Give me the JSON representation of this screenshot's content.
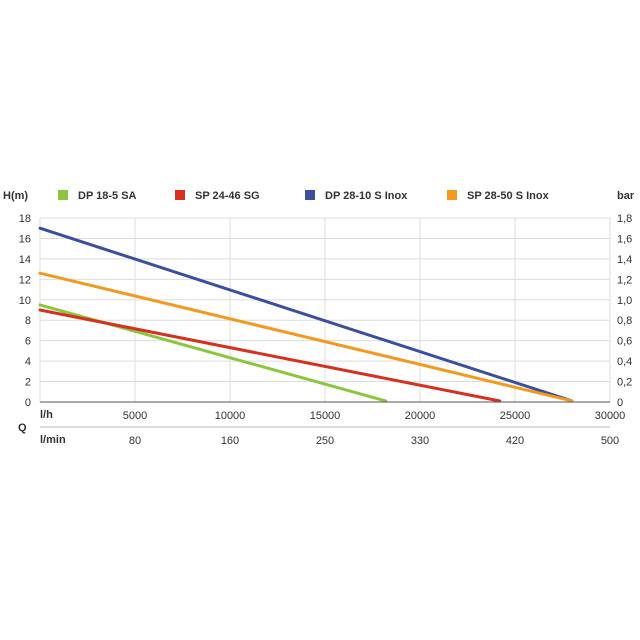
{
  "chart_data": {
    "type": "line",
    "title": "",
    "ylabel": "H(m)",
    "ylabel_right": "bar",
    "q_label": "Q",
    "xlabel_primary": "l/h",
    "xlabel_secondary": "l/min",
    "xlim": [
      0,
      30000
    ],
    "ylim": [
      0,
      18
    ],
    "x_ticks": [
      5000,
      10000,
      15000,
      20000,
      25000,
      30000
    ],
    "x_tick_labels": [
      "5000",
      "10000",
      "15000",
      "20000",
      "25000",
      "30000"
    ],
    "x2_tick_labels": [
      "80",
      "160",
      "250",
      "330",
      "420",
      "500"
    ],
    "y_ticks": [
      0,
      2,
      4,
      6,
      8,
      10,
      12,
      14,
      16,
      18
    ],
    "y_tick_labels": [
      "0",
      "2",
      "4",
      "6",
      "8",
      "10",
      "12",
      "14",
      "16",
      "18"
    ],
    "y2_tick_labels": [
      "0",
      "0,2",
      "0,4",
      "0,6",
      "0,8",
      "1,0",
      "1,2",
      "1,4",
      "1,6",
      "1,8"
    ],
    "grid": true,
    "legend_position": "top",
    "series": [
      {
        "name": "DP 18-5 SA",
        "color": "#8cc63f",
        "x": [
          0,
          18200
        ],
        "y": [
          9.5,
          0.1
        ]
      },
      {
        "name": "SP 24-46 SG",
        "color": "#d7301f",
        "x": [
          0,
          24200
        ],
        "y": [
          9.0,
          0.1
        ]
      },
      {
        "name": "DP 28-10 S Inox",
        "color": "#3c4ea0",
        "x": [
          0,
          28000
        ],
        "y": [
          17.0,
          0.1
        ]
      },
      {
        "name": "SP 28-50 S Inox",
        "color": "#f39a1e",
        "x": [
          0,
          28000
        ],
        "y": [
          12.6,
          0.1
        ]
      }
    ]
  }
}
